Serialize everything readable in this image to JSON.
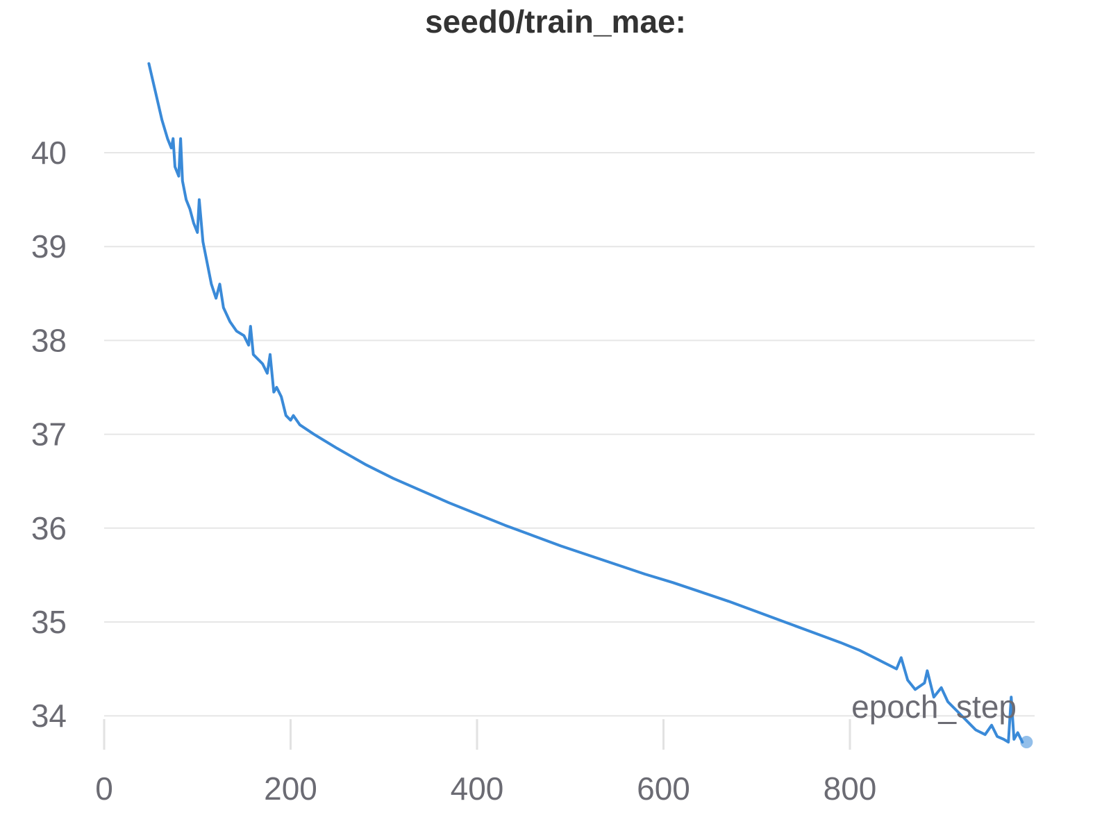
{
  "chart_data": {
    "type": "line",
    "title": "seed0/train_mae:",
    "xlabel": "epoch_step",
    "ylabel": "",
    "xlim": [
      0,
      1000
    ],
    "ylim": [
      33.72,
      40.95
    ],
    "x_ticks": [
      0,
      200,
      400,
      600,
      800
    ],
    "y_ticks": [
      34,
      35,
      36,
      37,
      38,
      39,
      40
    ],
    "grid": "horizontal",
    "line_color": "#3a8ad8",
    "series": [
      {
        "values": [
          [
            48,
            40.95
          ],
          [
            55,
            40.65
          ],
          [
            62,
            40.35
          ],
          [
            68,
            40.15
          ],
          [
            72,
            40.05
          ],
          [
            74,
            40.15
          ],
          [
            76,
            39.85
          ],
          [
            80,
            39.75
          ],
          [
            82,
            40.15
          ],
          [
            84,
            39.7
          ],
          [
            88,
            39.5
          ],
          [
            92,
            39.4
          ],
          [
            96,
            39.25
          ],
          [
            100,
            39.15
          ],
          [
            102,
            39.5
          ],
          [
            106,
            39.05
          ],
          [
            110,
            38.85
          ],
          [
            115,
            38.6
          ],
          [
            120,
            38.45
          ],
          [
            124,
            38.6
          ],
          [
            128,
            38.35
          ],
          [
            135,
            38.2
          ],
          [
            142,
            38.1
          ],
          [
            150,
            38.05
          ],
          [
            155,
            37.95
          ],
          [
            157,
            38.15
          ],
          [
            160,
            37.85
          ],
          [
            165,
            37.8
          ],
          [
            170,
            37.75
          ],
          [
            175,
            37.65
          ],
          [
            178,
            37.85
          ],
          [
            182,
            37.45
          ],
          [
            185,
            37.5
          ],
          [
            190,
            37.4
          ],
          [
            195,
            37.2
          ],
          [
            200,
            37.15
          ],
          [
            203,
            37.2
          ],
          [
            210,
            37.1
          ],
          [
            225,
            37.0
          ],
          [
            250,
            36.85
          ],
          [
            280,
            36.68
          ],
          [
            310,
            36.53
          ],
          [
            340,
            36.4
          ],
          [
            370,
            36.27
          ],
          [
            400,
            36.15
          ],
          [
            430,
            36.03
          ],
          [
            460,
            35.92
          ],
          [
            490,
            35.81
          ],
          [
            520,
            35.71
          ],
          [
            550,
            35.61
          ],
          [
            580,
            35.51
          ],
          [
            610,
            35.42
          ],
          [
            640,
            35.32
          ],
          [
            670,
            35.22
          ],
          [
            700,
            35.11
          ],
          [
            730,
            35.0
          ],
          [
            760,
            34.89
          ],
          [
            790,
            34.78
          ],
          [
            810,
            34.7
          ],
          [
            830,
            34.6
          ],
          [
            850,
            34.5
          ],
          [
            855,
            34.62
          ],
          [
            862,
            34.38
          ],
          [
            870,
            34.28
          ],
          [
            880,
            34.35
          ],
          [
            883,
            34.48
          ],
          [
            890,
            34.2
          ],
          [
            898,
            34.3
          ],
          [
            905,
            34.15
          ],
          [
            915,
            34.05
          ],
          [
            925,
            33.95
          ],
          [
            935,
            33.85
          ],
          [
            945,
            33.8
          ],
          [
            952,
            33.9
          ],
          [
            958,
            33.78
          ],
          [
            965,
            33.75
          ],
          [
            970,
            33.72
          ],
          [
            973,
            34.2
          ],
          [
            976,
            33.75
          ],
          [
            980,
            33.82
          ],
          [
            985,
            33.72
          ]
        ]
      }
    ]
  }
}
